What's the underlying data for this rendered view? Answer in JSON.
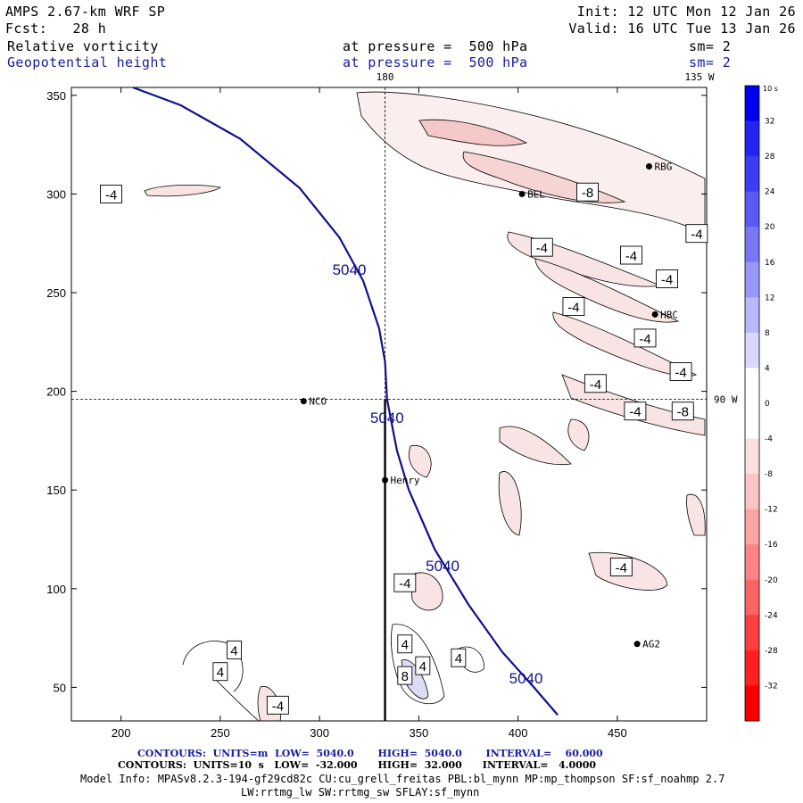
{
  "header": {
    "model": "AMPS 2.67-km WRF SP",
    "init": "Init: 12 UTC Mon 12 Jan 26",
    "fcst": "Fcst:   28 h",
    "valid": "Valid: 16 UTC Tue 13 Jan 26",
    "field1_name": "Relative vorticity",
    "field1_level": "at pressure =  500 hPa",
    "field1_sm": "sm= 2",
    "field2_name": "Geopotential height",
    "field2_level": "at pressure =  500 hPa",
    "field2_sm": "sm= 2"
  },
  "footer": {
    "contours1": "CONTOURS:  UNITS=m  LOW=  5040.0       HIGH=  5040.0       INTERVAL=    60.000",
    "contours2": "CONTOURS:  UNITS=10  s   LOW=  -32.000      HIGH=  32.000      INTERVAL=   4.0000",
    "model_info1": "Model Info: MPASv8.2.3-194-gf29cd82c CU:cu_grell_freitas PBL:bl_mynn MP:mp_thompson SF:sf_noahmp 2.7",
    "model_info2": "LW:rrtmg_lw SW:rrtmg_sw SFLAY:sf_mynn"
  },
  "colors": {
    "height_contour": "#10108a",
    "grid": "#000000",
    "neg_fill": "#f8e4e4",
    "pos_fill": "#dcdcf4"
  },
  "chart_data": {
    "type": "contour-map",
    "x_ticks": [
      200,
      250,
      300,
      350,
      400,
      450
    ],
    "y_ticks": [
      50,
      100,
      150,
      200,
      250,
      300,
      350
    ],
    "xlim": [
      175,
      495
    ],
    "ylim": [
      33,
      354
    ],
    "meridians": [
      {
        "label": "180",
        "x": 333
      },
      {
        "label": "135 W",
        "x": 503
      }
    ],
    "parallels": [
      {
        "label": "90 W",
        "y": 196
      }
    ],
    "height_contour": {
      "label": "5040",
      "labels_at": [
        {
          "x": 315,
          "y": 259
        },
        {
          "x": 334,
          "y": 184
        },
        {
          "x": 362,
          "y": 109
        },
        {
          "x": 404,
          "y": 52
        }
      ],
      "points": [
        [
          206,
          354
        ],
        [
          230,
          345
        ],
        [
          260,
          328
        ],
        [
          290,
          303
        ],
        [
          310,
          278
        ],
        [
          322,
          256
        ],
        [
          330,
          232
        ],
        [
          333,
          215
        ],
        [
          334,
          196
        ],
        [
          339,
          170
        ],
        [
          345,
          150
        ],
        [
          358,
          120
        ],
        [
          375,
          92
        ],
        [
          392,
          68
        ],
        [
          408,
          50
        ],
        [
          420,
          36
        ]
      ]
    },
    "stations": [
      {
        "name": "NCO",
        "x": 292,
        "y": 195
      },
      {
        "name": "Henry",
        "x": 333,
        "y": 155
      },
      {
        "name": "RBG",
        "x": 466,
        "y": 314
      },
      {
        "name": "HBC",
        "x": 469,
        "y": 239
      },
      {
        "name": "AG2",
        "x": 460,
        "y": 72
      },
      {
        "name": "BEL",
        "x": 402,
        "y": 300
      }
    ],
    "vorticity_labels": [
      {
        "text": "-4",
        "x": 195,
        "y": 300
      },
      {
        "text": "-4",
        "x": 412,
        "y": 273
      },
      {
        "text": "-4",
        "x": 457,
        "y": 269
      },
      {
        "text": "-4",
        "x": 475,
        "y": 257
      },
      {
        "text": "-4",
        "x": 490,
        "y": 280
      },
      {
        "text": "-4",
        "x": 428,
        "y": 243
      },
      {
        "text": "-4",
        "x": 464,
        "y": 227
      },
      {
        "text": "-4",
        "x": 482,
        "y": 210
      },
      {
        "text": "-4",
        "x": 439,
        "y": 204
      },
      {
        "text": "-4",
        "x": 459,
        "y": 190
      },
      {
        "text": "-8",
        "x": 435,
        "y": 301
      },
      {
        "text": "-8",
        "x": 483,
        "y": 190
      },
      {
        "text": "-4",
        "x": 452,
        "y": 111
      },
      {
        "text": "-4",
        "x": 343,
        "y": 103
      },
      {
        "text": "-4",
        "x": 279,
        "y": 41
      },
      {
        "text": "4",
        "x": 257,
        "y": 69
      },
      {
        "text": "4",
        "x": 250,
        "y": 58
      },
      {
        "text": "4",
        "x": 343,
        "y": 72
      },
      {
        "text": "4",
        "x": 352,
        "y": 61
      },
      {
        "text": "4",
        "x": 370,
        "y": 65
      },
      {
        "text": "8",
        "x": 343,
        "y": 56
      }
    ],
    "colorbar": {
      "unit": "10  s",
      "levels": [
        32,
        28,
        24,
        20,
        16,
        12,
        8,
        4,
        0,
        -4,
        -8,
        -12,
        -16,
        -20,
        -24,
        -28,
        -32
      ],
      "colors": [
        "#0000ee",
        "#2424f0",
        "#3c3cf2",
        "#5a5af4",
        "#7878f6",
        "#9898f8",
        "#b8b8fa",
        "#d8d8fc",
        "#ffffff",
        "#ffffff",
        "#fce0e0",
        "#fcc4c4",
        "#fca4a4",
        "#fc8484",
        "#fc6464",
        "#fc4040",
        "#fc2020",
        "#f80000"
      ]
    }
  }
}
